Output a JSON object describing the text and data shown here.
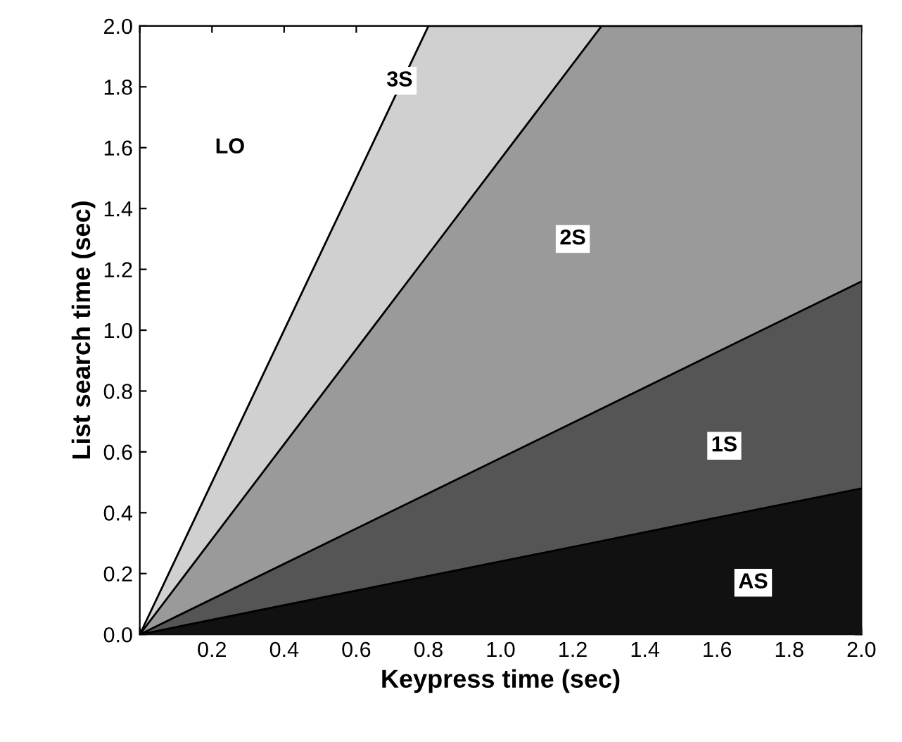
{
  "chart_data": {
    "type": "area",
    "xlabel": "Keypress time (sec)",
    "ylabel": "List search time (sec)",
    "x": [
      0,
      0.8,
      1.28,
      2.0
    ],
    "series": [
      {
        "color": "#111111",
        "values": [
          0,
          0.192,
          0.307,
          0.48
        ]
      },
      {
        "color": "#555555",
        "values": [
          0,
          0.464,
          0.742,
          1.16
        ]
      },
      {
        "color": "#9a9a9a",
        "values": [
          0,
          1.25,
          2.0,
          2.0
        ]
      },
      {
        "color": "#d0d0d0",
        "x": [
          0,
          0.8,
          1.28
        ],
        "values": [
          0,
          2.0,
          2.0
        ]
      }
    ],
    "xlim": [
      0,
      2.0
    ],
    "ylim": [
      0,
      2.0
    ],
    "xticks": [
      {
        "value": 0,
        "label": null
      },
      {
        "value": 0.2,
        "label": "0.2"
      },
      {
        "value": 0.4,
        "label": "0.4"
      },
      {
        "value": 0.6,
        "label": "0.6"
      },
      {
        "value": 0.8,
        "label": "0.8"
      },
      {
        "value": 1.0,
        "label": "1.0"
      },
      {
        "value": 1.2,
        "label": "1.2"
      },
      {
        "value": 1.4,
        "label": "1.4"
      },
      {
        "value": 1.6,
        "label": "1.6"
      },
      {
        "value": 1.8,
        "label": "1.8"
      },
      {
        "value": 2.0,
        "label": "2.0"
      }
    ],
    "yticks": [
      {
        "value": 0,
        "label": "0.0"
      },
      {
        "value": 0.2,
        "label": "0.2"
      },
      {
        "value": 0.4,
        "label": "0.4"
      },
      {
        "value": 0.6,
        "label": "0.6"
      },
      {
        "value": 0.8,
        "label": "0.8"
      },
      {
        "value": 1.0,
        "label": "1.0"
      },
      {
        "value": 1.2,
        "label": "1.2"
      },
      {
        "value": 1.4,
        "label": "1.4"
      },
      {
        "value": 1.6,
        "label": "1.6"
      },
      {
        "value": 1.8,
        "label": "1.8"
      },
      {
        "value": 2.0,
        "label": "2.0"
      }
    ],
    "annotations": [
      {
        "text": "LO",
        "x": 0.25,
        "y": 1.6
      },
      {
        "text": "3S",
        "x": 0.72,
        "y": 1.82
      },
      {
        "text": "2S",
        "x": 1.2,
        "y": 1.3
      },
      {
        "text": "1S",
        "x": 1.62,
        "y": 0.62
      },
      {
        "text": "AS",
        "x": 1.7,
        "y": 0.17
      }
    ]
  }
}
